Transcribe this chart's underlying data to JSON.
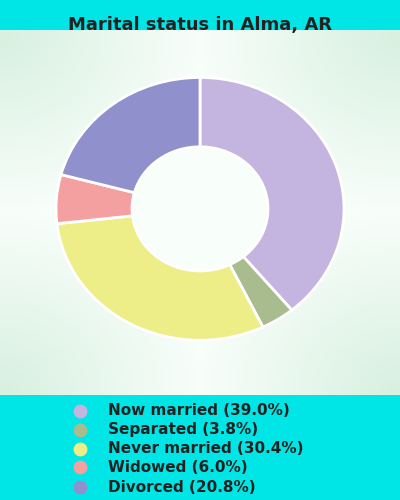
{
  "title": "Marital status in Alma, AR",
  "slices": [
    {
      "label": "Now married (39.0%)",
      "value": 39.0,
      "color": "#c4b4e0"
    },
    {
      "label": "Separated (3.8%)",
      "value": 3.8,
      "color": "#a8bc8e"
    },
    {
      "label": "Never married (30.4%)",
      "value": 30.4,
      "color": "#eeee88"
    },
    {
      "label": "Widowed (6.0%)",
      "value": 6.0,
      "color": "#f4a0a0"
    },
    {
      "label": "Divorced (20.8%)",
      "value": 20.8,
      "color": "#9090cc"
    }
  ],
  "legend_dot_colors": [
    "#c4b4e0",
    "#a8bc8e",
    "#eeee88",
    "#f4a0a0",
    "#9090cc"
  ],
  "bg_color_cyan": "#00e5e5",
  "bg_color_chart_corner": "#d8f0e0",
  "bg_color_chart_center": "#f4faf6",
  "title_color": "#222222",
  "legend_text_color": "#222222",
  "title_fontsize": 13,
  "legend_fontsize": 11,
  "donut_width": 0.38
}
